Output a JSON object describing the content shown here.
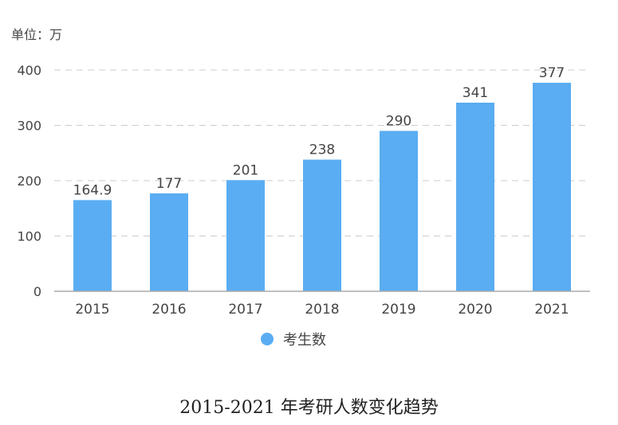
{
  "unit_label": "单位：万",
  "caption": "2015-2021 年考研人数变化趋势",
  "colors": {
    "bar": "#5aadf2",
    "grid": "#cccccc",
    "axis": "#aaaaaa",
    "text": "#444444"
  },
  "chart_data": {
    "type": "bar",
    "title": "",
    "categories": [
      "2015",
      "2016",
      "2017",
      "2018",
      "2019",
      "2020",
      "2021"
    ],
    "series": [
      {
        "name": "考生数",
        "values": [
          164.9,
          177,
          201,
          238,
          290,
          341,
          377
        ],
        "labels": [
          "164.9",
          "177",
          "201",
          "238",
          "290",
          "341",
          "377"
        ]
      }
    ],
    "ylim": [
      0,
      400
    ],
    "yticks": [
      0,
      100,
      200,
      300,
      400
    ],
    "grid": true,
    "grid_style": "dashed",
    "legend": "bottom-center"
  }
}
